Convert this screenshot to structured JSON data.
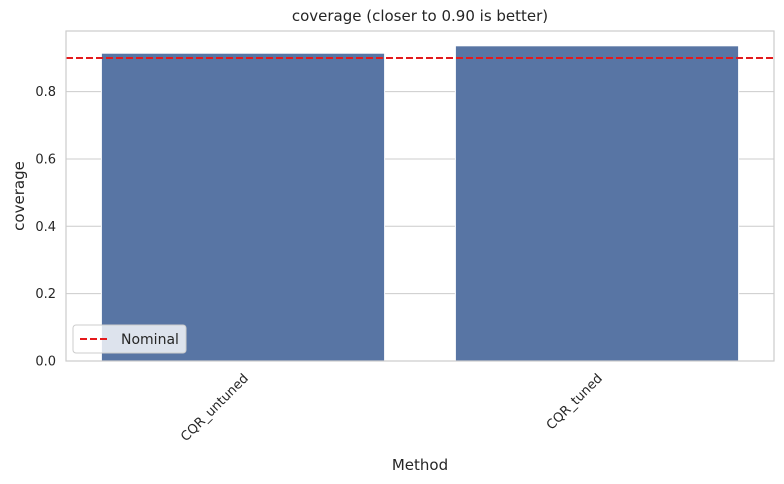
{
  "chart_data": {
    "type": "bar",
    "title": "coverage (closer to 0.90 is better)",
    "xlabel": "Method",
    "ylabel": "coverage",
    "categories": [
      "CQR_untuned",
      "CQR_tuned"
    ],
    "values": [
      0.914,
      0.936
    ],
    "ylim": [
      0,
      0.98
    ],
    "yticks": [
      0.0,
      0.2,
      0.4,
      0.6,
      0.8
    ],
    "ytick_labels": [
      "0.0",
      "0.2",
      "0.4",
      "0.6",
      "0.8"
    ],
    "reference_line": {
      "value": 0.9,
      "label": "Nominal",
      "style": "dashed",
      "color": "#e41a1c"
    },
    "bar_color": "#5875a4",
    "grid": "y",
    "legend": {
      "placement": "lower-left",
      "entries": [
        "Nominal"
      ]
    }
  }
}
